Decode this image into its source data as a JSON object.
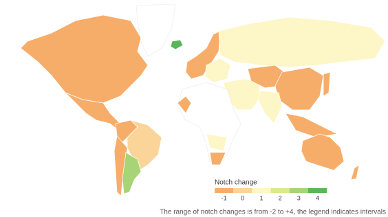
{
  "legend": {
    "title": "Notch change",
    "labels": [
      -1,
      0,
      1,
      2,
      3,
      4
    ],
    "colors": [
      "#f7ad6a",
      "#fbd49a",
      "#fdf6c6",
      "#dbe98a",
      "#a6d476",
      "#5bb55a"
    ]
  },
  "caption": "The range of notch changes is from -2 to +4, the legend indicates intervals"
}
